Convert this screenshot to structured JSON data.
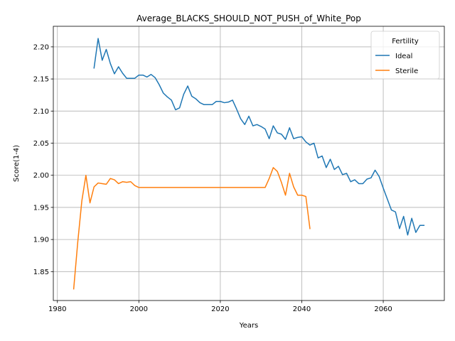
{
  "chart_data": {
    "type": "line",
    "title": "Average_BLACKS_SHOULD_NOT_PUSH_of_White_Pop",
    "xlabel": "Years",
    "ylabel": "Score(1-4)",
    "xlim": [
      1979,
      2075
    ],
    "ylim": [
      1.805,
      2.232
    ],
    "xticks": [
      1980,
      2000,
      2020,
      2040,
      2060
    ],
    "yticks": [
      1.85,
      1.9,
      1.95,
      2.0,
      2.05,
      2.1,
      2.15,
      2.2
    ],
    "grid": true,
    "legend": {
      "title": "Fertility",
      "position": "top-right"
    },
    "series": [
      {
        "name": "Ideal",
        "color": "#1f77b4",
        "x": [
          1989,
          1990,
          1991,
          1992,
          1993,
          1994,
          1995,
          1996,
          1997,
          1998,
          1999,
          2000,
          2001,
          2002,
          2003,
          2004,
          2005,
          2006,
          2007,
          2008,
          2009,
          2010,
          2011,
          2012,
          2013,
          2014,
          2015,
          2016,
          2017,
          2018,
          2019,
          2020,
          2021,
          2022,
          2023,
          2024,
          2025,
          2026,
          2027,
          2028,
          2029,
          2030,
          2031,
          2032,
          2033,
          2034,
          2035,
          2036,
          2037,
          2038,
          2039,
          2040,
          2041,
          2042,
          2043,
          2044,
          2045,
          2046,
          2047,
          2048,
          2049,
          2050,
          2051,
          2052,
          2053,
          2054,
          2055,
          2056,
          2057,
          2058,
          2059,
          2060,
          2061,
          2062,
          2063,
          2064,
          2065,
          2066,
          2067,
          2068,
          2069,
          2070
        ],
        "y": [
          2.167,
          2.213,
          2.179,
          2.196,
          2.174,
          2.158,
          2.169,
          2.159,
          2.151,
          2.151,
          2.151,
          2.156,
          2.156,
          2.153,
          2.157,
          2.152,
          2.141,
          2.128,
          2.122,
          2.117,
          2.102,
          2.105,
          2.126,
          2.139,
          2.123,
          2.119,
          2.113,
          2.11,
          2.11,
          2.11,
          2.115,
          2.115,
          2.113,
          2.114,
          2.117,
          2.103,
          2.088,
          2.079,
          2.092,
          2.077,
          2.079,
          2.076,
          2.072,
          2.057,
          2.077,
          2.066,
          2.064,
          2.056,
          2.074,
          2.057,
          2.059,
          2.06,
          2.052,
          2.047,
          2.05,
          2.027,
          2.03,
          2.012,
          2.025,
          2.009,
          2.014,
          2.001,
          2.003,
          1.99,
          1.993,
          1.987,
          1.987,
          1.994,
          1.996,
          2.008,
          1.998,
          1.98,
          1.963,
          1.946,
          1.943,
          1.917,
          1.936,
          1.907,
          1.933,
          1.911,
          1.922,
          1.922
        ]
      },
      {
        "name": "Sterile",
        "color": "#ff7f0e",
        "x": [
          1984,
          1985,
          1986,
          1987,
          1988,
          1989,
          1990,
          1991,
          1992,
          1993,
          1994,
          1995,
          1996,
          1997,
          1998,
          1999,
          2000,
          2001,
          2002,
          2003,
          2004,
          2005,
          2006,
          2007,
          2008,
          2009,
          2010,
          2011,
          2012,
          2013,
          2014,
          2015,
          2016,
          2017,
          2018,
          2019,
          2020,
          2021,
          2022,
          2023,
          2024,
          2025,
          2026,
          2027,
          2028,
          2029,
          2030,
          2031,
          2032,
          2033,
          2034,
          2035,
          2036,
          2037,
          2038,
          2039,
          2040,
          2041,
          2042
        ],
        "y": [
          1.823,
          1.896,
          1.96,
          2.0,
          1.957,
          1.982,
          1.988,
          1.987,
          1.986,
          1.995,
          1.993,
          1.987,
          1.99,
          1.989,
          1.99,
          1.984,
          1.981,
          1.981,
          1.981,
          1.981,
          1.981,
          1.981,
          1.981,
          1.981,
          1.981,
          1.981,
          1.981,
          1.981,
          1.981,
          1.981,
          1.981,
          1.981,
          1.981,
          1.981,
          1.981,
          1.981,
          1.981,
          1.981,
          1.981,
          1.981,
          1.981,
          1.981,
          1.981,
          1.981,
          1.981,
          1.981,
          1.981,
          1.981,
          1.995,
          2.012,
          2.006,
          1.989,
          1.969,
          2.003,
          1.982,
          1.969,
          1.969,
          1.967,
          1.917
        ]
      }
    ]
  }
}
